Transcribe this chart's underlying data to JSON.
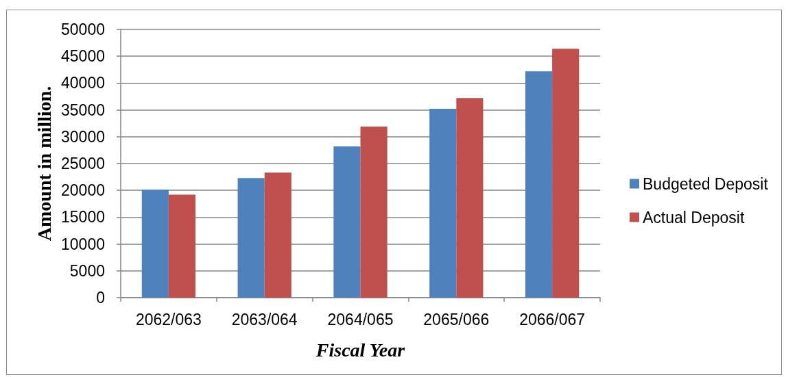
{
  "chart_data": {
    "type": "bar",
    "xlabel": "Fiscal Year",
    "ylabel": "Amount in million.",
    "categories": [
      "2062/063",
      "2063/064",
      "2064/065",
      "2065/066",
      "2066/067"
    ],
    "series": [
      {
        "name": "Budgeted Deposit",
        "color": "#4f81bd",
        "values": [
          20100,
          22300,
          28200,
          35200,
          42200
        ]
      },
      {
        "name": "Actual Deposit",
        "color": "#c0504d",
        "values": [
          19200,
          23300,
          31900,
          37200,
          46400
        ]
      }
    ],
    "ylim": [
      0,
      50000
    ],
    "yticks": [
      0,
      5000,
      10000,
      15000,
      20000,
      25000,
      30000,
      35000,
      40000,
      45000,
      50000
    ],
    "grid": "y",
    "legend": "right"
  }
}
